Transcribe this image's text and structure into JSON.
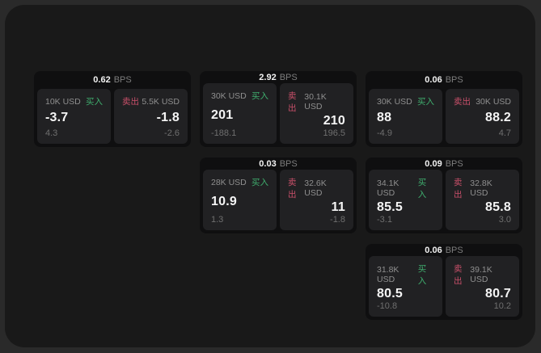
{
  "labels": {
    "buy": "买入",
    "sell": "卖出",
    "bps_unit": "BPS"
  },
  "colors": {
    "buy": "#3fae6e",
    "sell": "#c9506a",
    "card_bg": "#0f0f10",
    "panel_bg": "#212123",
    "page_bg": "#191919"
  },
  "cards": [
    {
      "row": 1,
      "col": 1,
      "bps": "0.62",
      "buy": {
        "size": "10K USD",
        "value": "-3.7",
        "delta": "4.3"
      },
      "sell": {
        "size": "5.5K USD",
        "value": "-1.8",
        "delta": "-2.6"
      }
    },
    {
      "row": 1,
      "col": 2,
      "bps": "2.92",
      "buy": {
        "size": "30K USD",
        "value": "201",
        "delta": "-188.1"
      },
      "sell": {
        "size": "30.1K USD",
        "value": "210",
        "delta": "196.5"
      }
    },
    {
      "row": 1,
      "col": 3,
      "bps": "0.06",
      "buy": {
        "size": "30K USD",
        "value": "88",
        "delta": "-4.9"
      },
      "sell": {
        "size": "30K USD",
        "value": "88.2",
        "delta": "4.7"
      }
    },
    {
      "row": 2,
      "col": 2,
      "bps": "0.03",
      "buy": {
        "size": "28K USD",
        "value": "10.9",
        "delta": "1.3"
      },
      "sell": {
        "size": "32.6K USD",
        "value": "11",
        "delta": "-1.8"
      }
    },
    {
      "row": 2,
      "col": 3,
      "bps": "0.09",
      "buy": {
        "size": "34.1K USD",
        "value": "85.5",
        "delta": "-3.1"
      },
      "sell": {
        "size": "32.8K USD",
        "value": "85.8",
        "delta": "3.0"
      }
    },
    {
      "row": 3,
      "col": 3,
      "bps": "0.06",
      "buy": {
        "size": "31.8K USD",
        "value": "80.5",
        "delta": "-10.8"
      },
      "sell": {
        "size": "39.1K USD",
        "value": "80.7",
        "delta": "10.2"
      }
    }
  ]
}
